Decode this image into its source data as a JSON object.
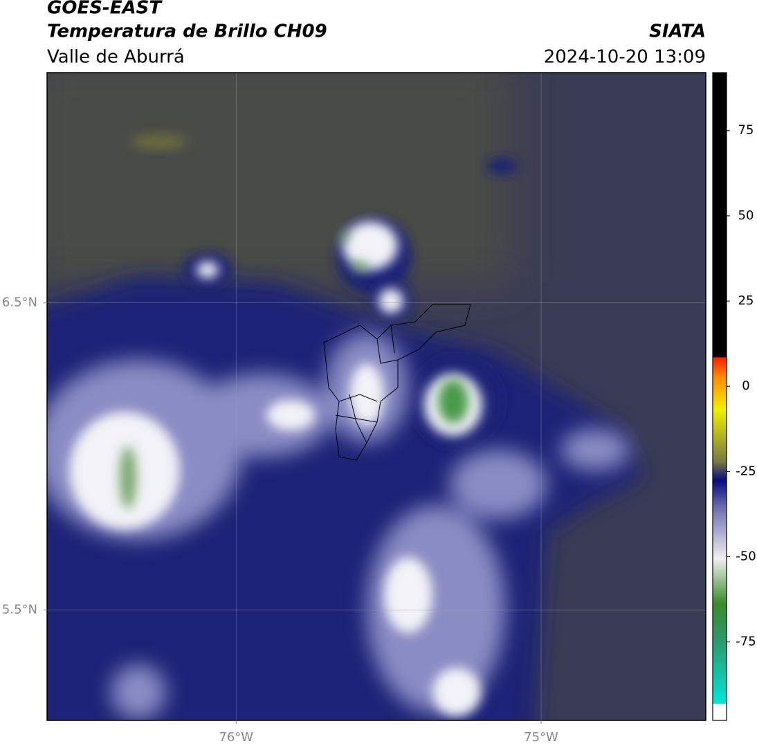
{
  "map": {
    "title": "GOES-EAST",
    "subtitle": "Temperatura de Brillo CH09",
    "region": "Valle de Aburrá",
    "source": "SIATA",
    "datetime": "2024-10-20 13:09",
    "xlim": [
      -76.62,
      -74.46
    ],
    "ylim": [
      5.14,
      7.25
    ],
    "xticks": [
      {
        "value": -76,
        "label": "76°W"
      },
      {
        "value": -75,
        "label": "75°W"
      }
    ],
    "yticks": [
      {
        "value": 5.5,
        "label": "5.5°N"
      },
      {
        "value": 6.5,
        "label": "6.5°N"
      }
    ],
    "grid": true,
    "colorbar": {
      "lim": [
        -98,
        92
      ],
      "ticks": [
        75,
        50,
        25,
        0,
        -25,
        -50,
        -75
      ]
    }
  }
}
